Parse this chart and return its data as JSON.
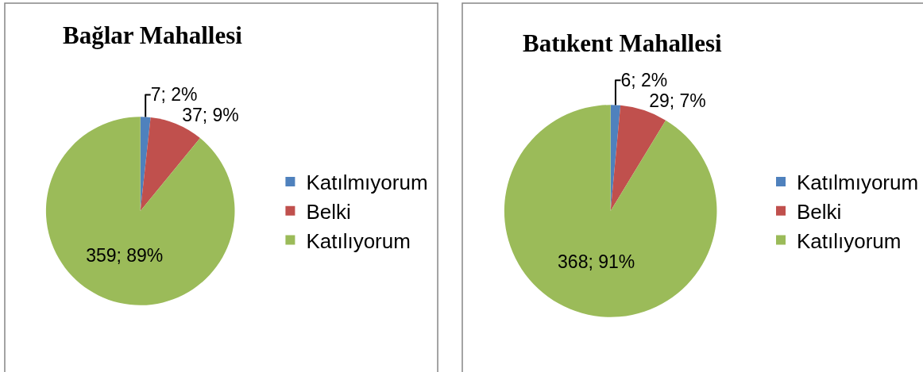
{
  "chart_data": [
    {
      "type": "pie",
      "title": "Bağlar Mahallesi",
      "categories": [
        "Katılmıyorum",
        "Belki",
        "Katılıyorum"
      ],
      "values": [
        7,
        37,
        359
      ],
      "colors": [
        "#4f81bd",
        "#c0504d",
        "#9bbb59"
      ],
      "value_labels": [
        "7; 2%",
        "37; 9%",
        "359; 89%"
      ],
      "legend": "right"
    },
    {
      "type": "pie",
      "title": "Batıkent Mahallesi",
      "categories": [
        "Katılmıyorum",
        "Belki",
        "Katılıyorum"
      ],
      "values": [
        6,
        29,
        368
      ],
      "colors": [
        "#4f81bd",
        "#c0504d",
        "#9bbb59"
      ],
      "value_labels": [
        "6; 2%",
        "29; 7%",
        "368; 91%"
      ],
      "legend": "right"
    }
  ]
}
